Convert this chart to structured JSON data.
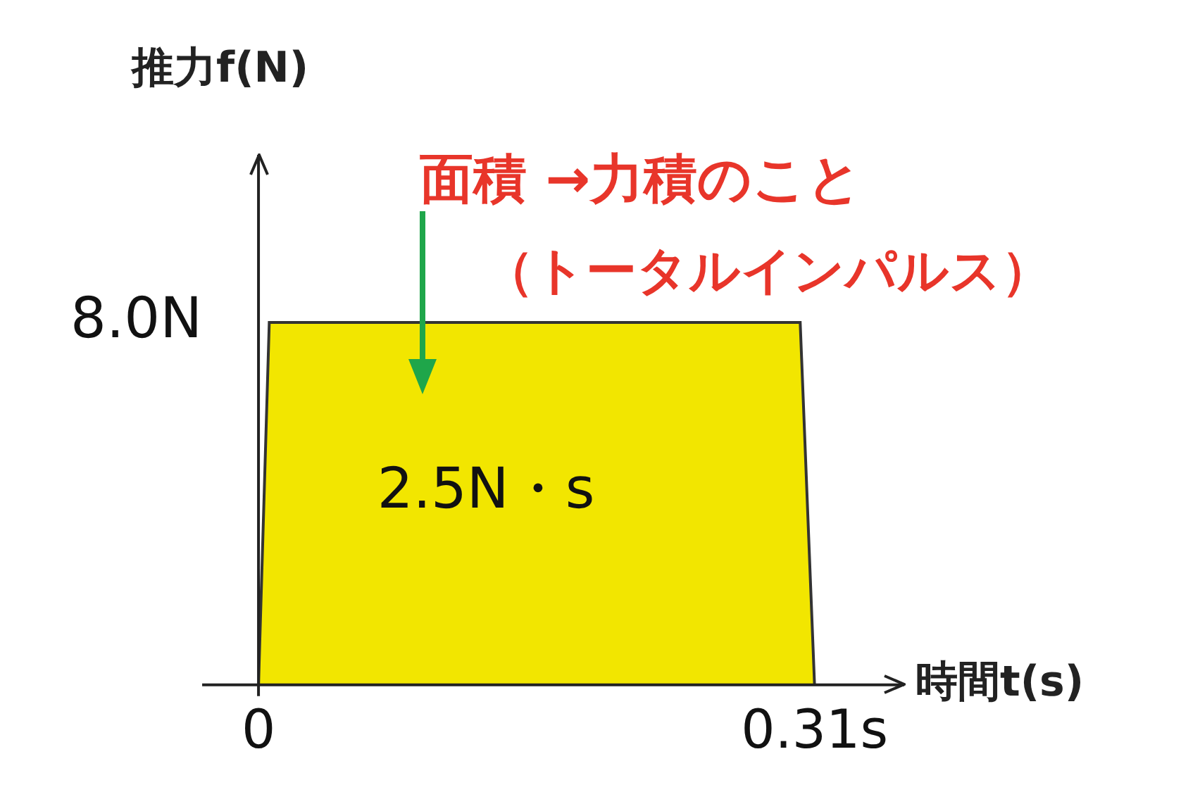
{
  "chart_data": {
    "type": "area",
    "xlabel": "時間t(s)",
    "ylabel": "推力f(N)",
    "x": [
      0,
      0.006,
      0.302,
      0.31
    ],
    "series": [
      {
        "color": "#f2e600",
        "values": [
          0,
          8,
          8,
          0
        ]
      }
    ],
    "xlim": [
      0,
      0.36
    ],
    "ylim": [
      0,
      11.7
    ],
    "xticks": [
      0,
      {
        "value": 0.31,
        "label": "0.31s"
      }
    ],
    "yticks": [
      {
        "value": 8,
        "label": "8.0N"
      }
    ],
    "grid": false,
    "legend": false,
    "annotations": [
      "面積 →力積のこと",
      "（トータルインパルス）",
      "2.5N・s"
    ]
  }
}
